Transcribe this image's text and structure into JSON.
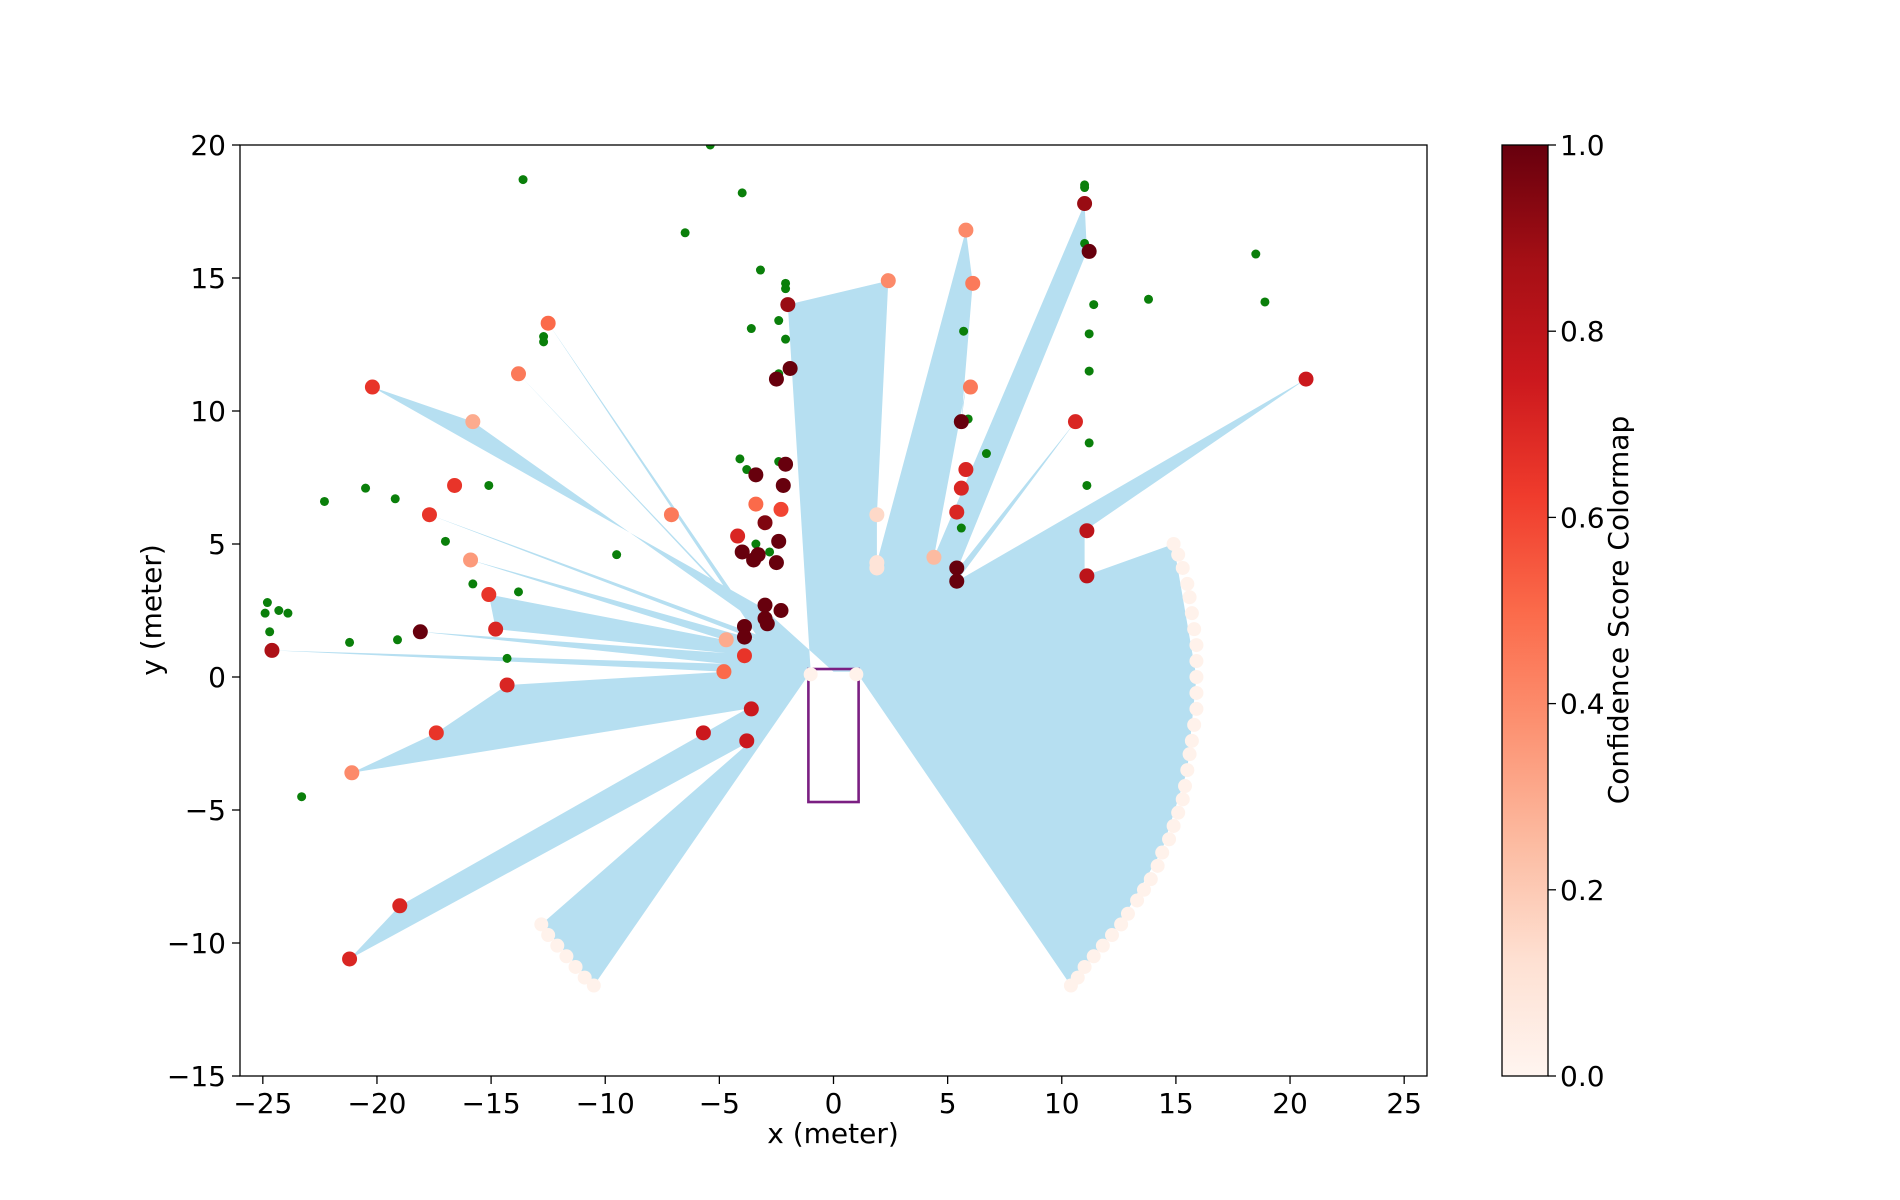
{
  "chart_data": {
    "type": "scatter",
    "title": "",
    "xlabel": "x (meter)",
    "ylabel": "y (meter)",
    "xlim": [
      -26,
      26
    ],
    "ylim": [
      -15,
      20
    ],
    "xticks": [
      -25,
      -20,
      -15,
      -10,
      -5,
      0,
      5,
      10,
      15,
      20,
      25
    ],
    "yticks": [
      -15,
      -10,
      -5,
      0,
      5,
      10,
      15,
      20
    ],
    "xtick_labels": [
      "−25",
      "−20",
      "−15",
      "−10",
      "−5",
      "0",
      "5",
      "10",
      "15",
      "20",
      "25"
    ],
    "ytick_labels": [
      "−15",
      "−10",
      "−5",
      "0",
      "5",
      "10",
      "15",
      "20"
    ],
    "grid": false,
    "colors": {
      "free_space": "#b6dff1",
      "vehicle_box": "#7b1f82",
      "green_points": "#0a7f0a"
    },
    "colorbar": {
      "label": "Confidence Score Colormap",
      "cmap": "Reds",
      "range": [
        0.0,
        1.0
      ],
      "ticks": [
        0.0,
        0.2,
        0.4,
        0.6,
        0.8,
        1.0
      ],
      "tick_labels": [
        "0.0",
        "0.2",
        "0.4",
        "0.6",
        "0.8",
        "1.0"
      ]
    },
    "vehicle_box": {
      "x": [
        -1.1,
        1.1
      ],
      "y": [
        -4.7,
        0.3
      ]
    },
    "free_space_region": [
      [
        0,
        0.2
      ],
      [
        -3.1,
        2.6
      ],
      [
        -20.2,
        10.9
      ],
      [
        -15.8,
        9.6
      ],
      [
        -3.6,
        2.2
      ],
      [
        -13.8,
        11.4
      ],
      [
        -3.4,
        1.9
      ],
      [
        -12.5,
        13.3
      ],
      [
        -3.4,
        1.6
      ],
      [
        -17.7,
        6.1
      ],
      [
        -3.4,
        1.4
      ],
      [
        -15.9,
        4.4
      ],
      [
        -4.8,
        1.4
      ],
      [
        -15.1,
        3.1
      ],
      [
        -14.8,
        1.8
      ],
      [
        -4.7,
        0.9
      ],
      [
        -18.1,
        1.7
      ],
      [
        -4.8,
        0.5
      ],
      [
        -24.6,
        1.0
      ],
      [
        -4.7,
        0.2
      ],
      [
        -14.3,
        -0.3
      ],
      [
        -17.4,
        -2.1
      ],
      [
        -21.1,
        -3.6
      ],
      [
        -3.8,
        -1.2
      ],
      [
        -19.0,
        -8.6
      ],
      [
        -21.2,
        -10.6
      ],
      [
        -3.6,
        -2.4
      ],
      [
        -12.8,
        -9.3
      ],
      [
        -10.5,
        -11.6
      ],
      [
        -1.0,
        0.2
      ],
      [
        -2.0,
        14.0
      ],
      [
        2.4,
        14.9
      ],
      [
        1.9,
        6.1
      ],
      [
        1.9,
        4.3
      ],
      [
        5.8,
        16.8
      ],
      [
        6.1,
        14.8
      ],
      [
        5.6,
        9.6
      ],
      [
        5.8,
        10.9
      ],
      [
        4.4,
        4.5
      ],
      [
        11.0,
        17.8
      ],
      [
        11.1,
        16.0
      ],
      [
        5.4,
        4.0
      ],
      [
        10.6,
        9.6
      ],
      [
        5.4,
        3.6
      ],
      [
        20.7,
        11.2
      ],
      [
        11.0,
        5.5
      ],
      [
        11.0,
        3.8
      ],
      [
        14.9,
        5.0
      ],
      [
        15.9,
        0.0
      ],
      [
        15.5,
        -3.5
      ],
      [
        14.4,
        -6.5
      ],
      [
        12.6,
        -9.2
      ],
      [
        10.4,
        -11.6
      ],
      [
        1.0,
        0.2
      ]
    ],
    "series": [
      {
        "name": "green points",
        "color": "#0a7f0a",
        "points": [
          [
            -5.4,
            20.0
          ],
          [
            -13.6,
            18.7
          ],
          [
            -4.0,
            18.2
          ],
          [
            -6.5,
            16.7
          ],
          [
            -3.2,
            15.3
          ],
          [
            -2.1,
            14.8
          ],
          [
            -2.1,
            14.6
          ],
          [
            -12.7,
            12.8
          ],
          [
            -12.7,
            12.6
          ],
          [
            -3.6,
            13.1
          ],
          [
            -2.4,
            13.4
          ],
          [
            -2.1,
            12.7
          ],
          [
            -2.4,
            11.4
          ],
          [
            -22.3,
            6.6
          ],
          [
            -20.5,
            7.1
          ],
          [
            -19.2,
            6.7
          ],
          [
            -15.1,
            7.2
          ],
          [
            -17.0,
            5.1
          ],
          [
            -15.8,
            3.5
          ],
          [
            -13.8,
            3.2
          ],
          [
            -9.5,
            4.6
          ],
          [
            -4.1,
            8.2
          ],
          [
            -3.8,
            7.8
          ],
          [
            -2.4,
            8.1
          ],
          [
            -3.4,
            5.0
          ],
          [
            -2.8,
            4.7
          ],
          [
            -2.4,
            5.2
          ],
          [
            -24.8,
            2.8
          ],
          [
            -24.3,
            2.5
          ],
          [
            -23.9,
            2.4
          ],
          [
            -24.9,
            2.4
          ],
          [
            -24.7,
            1.7
          ],
          [
            -21.2,
            1.3
          ],
          [
            -19.1,
            1.4
          ],
          [
            -14.3,
            0.7
          ],
          [
            -23.3,
            -4.5
          ],
          [
            11.0,
            18.5
          ],
          [
            11.0,
            18.4
          ],
          [
            11.0,
            16.3
          ],
          [
            18.5,
            15.9
          ],
          [
            11.4,
            14.0
          ],
          [
            13.8,
            14.2
          ],
          [
            18.9,
            14.1
          ],
          [
            5.7,
            13.0
          ],
          [
            11.2,
            12.9
          ],
          [
            11.2,
            11.5
          ],
          [
            5.9,
            9.7
          ],
          [
            11.2,
            8.8
          ],
          [
            6.7,
            8.4
          ],
          [
            11.1,
            7.2
          ],
          [
            5.6,
            5.6
          ]
        ]
      },
      {
        "name": "confidence-scored obstacle points",
        "cmap": "Reds",
        "points": [
          [
            -2.0,
            14.0,
            0.9
          ],
          [
            -12.5,
            13.3,
            0.5
          ],
          [
            -20.2,
            10.9,
            0.65
          ],
          [
            -13.8,
            11.4,
            0.45
          ],
          [
            -15.8,
            9.6,
            0.3
          ],
          [
            -1.9,
            11.6,
            1.0
          ],
          [
            -2.5,
            11.2,
            1.0
          ],
          [
            -16.6,
            7.2,
            0.65
          ],
          [
            -17.7,
            6.1,
            0.65
          ],
          [
            -7.1,
            6.1,
            0.45
          ],
          [
            -15.9,
            4.4,
            0.35
          ],
          [
            -15.1,
            3.1,
            0.65
          ],
          [
            -18.1,
            1.7,
            1.0
          ],
          [
            -14.8,
            1.8,
            0.7
          ],
          [
            -24.6,
            1.0,
            0.85
          ],
          [
            -14.3,
            -0.3,
            0.7
          ],
          [
            -17.4,
            -2.1,
            0.65
          ],
          [
            -21.1,
            -3.6,
            0.4
          ],
          [
            -19.0,
            -8.6,
            0.7
          ],
          [
            -21.2,
            -10.6,
            0.7
          ],
          [
            -4.7,
            1.4,
            0.3
          ],
          [
            -4.8,
            0.2,
            0.5
          ],
          [
            -3.9,
            0.8,
            0.65
          ],
          [
            -3.4,
            6.5,
            0.5
          ],
          [
            -4.2,
            5.3,
            0.7
          ],
          [
            -4.0,
            4.7,
            1.0
          ],
          [
            -3.4,
            7.6,
            1.0
          ],
          [
            -2.1,
            8.0,
            1.0
          ],
          [
            -2.2,
            7.2,
            1.0
          ],
          [
            -2.3,
            6.3,
            0.6
          ],
          [
            -3.0,
            5.8,
            0.95
          ],
          [
            -2.4,
            5.1,
            1.0
          ],
          [
            -3.3,
            4.6,
            1.0
          ],
          [
            -3.5,
            4.4,
            1.0
          ],
          [
            -2.5,
            4.3,
            1.0
          ],
          [
            -3.0,
            2.7,
            1.0
          ],
          [
            -2.3,
            2.5,
            1.0
          ],
          [
            -3.0,
            2.2,
            1.0
          ],
          [
            -2.9,
            2.0,
            1.0
          ],
          [
            -3.9,
            1.9,
            1.0
          ],
          [
            -3.9,
            1.5,
            1.0
          ],
          [
            -3.6,
            -1.2,
            0.75
          ],
          [
            -5.7,
            -2.1,
            0.75
          ],
          [
            -3.8,
            -2.4,
            0.75
          ],
          [
            2.4,
            14.9,
            0.4
          ],
          [
            1.9,
            6.1,
            0.15
          ],
          [
            1.9,
            4.3,
            0.1
          ],
          [
            1.9,
            4.1,
            0.1
          ],
          [
            4.4,
            4.5,
            0.25
          ],
          [
            5.8,
            16.8,
            0.4
          ],
          [
            6.1,
            14.8,
            0.45
          ],
          [
            6.0,
            10.9,
            0.45
          ],
          [
            5.6,
            9.6,
            1.0
          ],
          [
            5.8,
            7.8,
            0.7
          ],
          [
            5.6,
            7.1,
            0.7
          ],
          [
            5.4,
            6.2,
            0.7
          ],
          [
            5.4,
            4.1,
            1.0
          ],
          [
            5.4,
            3.6,
            1.0
          ],
          [
            11.0,
            17.8,
            0.9
          ],
          [
            11.2,
            16.0,
            1.0
          ],
          [
            10.6,
            9.6,
            0.7
          ],
          [
            11.1,
            5.5,
            0.8
          ],
          [
            11.1,
            3.8,
            0.8
          ],
          [
            20.7,
            11.2,
            0.75
          ]
        ]
      },
      {
        "name": "boundary arcs (low confidence)",
        "cmap": "Reds",
        "value": 0.02,
        "points": [
          [
            -1.0,
            0.1
          ],
          [
            1.0,
            0.1
          ],
          [
            -12.8,
            -9.3
          ],
          [
            -12.5,
            -9.7
          ],
          [
            -12.1,
            -10.1
          ],
          [
            -11.7,
            -10.5
          ],
          [
            -11.3,
            -10.9
          ],
          [
            -10.9,
            -11.3
          ],
          [
            -10.5,
            -11.6
          ],
          [
            14.9,
            5.0
          ],
          [
            15.1,
            4.6
          ],
          [
            15.3,
            4.1
          ],
          [
            15.5,
            3.5
          ],
          [
            15.6,
            3.0
          ],
          [
            15.7,
            2.4
          ],
          [
            15.8,
            1.8
          ],
          [
            15.9,
            1.2
          ],
          [
            15.9,
            0.6
          ],
          [
            15.9,
            0.0
          ],
          [
            15.9,
            -0.6
          ],
          [
            15.9,
            -1.2
          ],
          [
            15.8,
            -1.8
          ],
          [
            15.7,
            -2.4
          ],
          [
            15.6,
            -2.9
          ],
          [
            15.5,
            -3.5
          ],
          [
            15.4,
            -4.1
          ],
          [
            15.3,
            -4.6
          ],
          [
            15.1,
            -5.1
          ],
          [
            14.9,
            -5.6
          ],
          [
            14.7,
            -6.1
          ],
          [
            14.4,
            -6.6
          ],
          [
            14.2,
            -7.1
          ],
          [
            13.9,
            -7.6
          ],
          [
            13.6,
            -8.0
          ],
          [
            13.3,
            -8.4
          ],
          [
            12.9,
            -8.9
          ],
          [
            12.6,
            -9.3
          ],
          [
            12.2,
            -9.7
          ],
          [
            11.8,
            -10.1
          ],
          [
            11.4,
            -10.5
          ],
          [
            11.0,
            -10.9
          ],
          [
            10.7,
            -11.3
          ],
          [
            10.4,
            -11.6
          ]
        ]
      }
    ]
  }
}
